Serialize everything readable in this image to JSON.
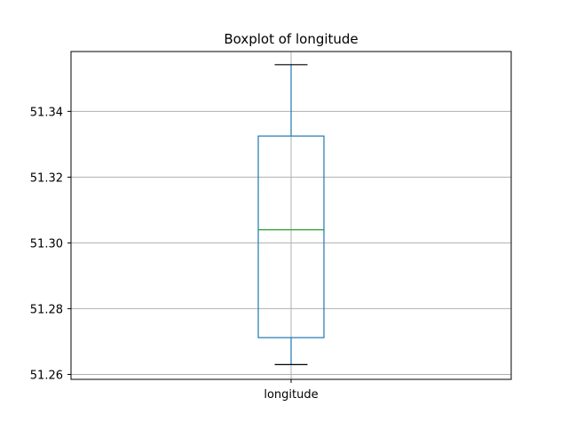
{
  "chart_data": {
    "type": "boxplot",
    "title": "Boxplot of longitude",
    "xlabel": "",
    "ylabel": "",
    "categories": [
      "longitude"
    ],
    "boxes": [
      {
        "category": "longitude",
        "whisker_low": 51.263,
        "q1": 51.2712,
        "median": 51.304,
        "q3": 51.3325,
        "whisker_high": 51.3542
      }
    ],
    "ylim": [
      51.2585,
      51.3582
    ],
    "yticks": [
      51.26,
      51.28,
      51.3,
      51.32,
      51.34
    ],
    "ytick_labels": [
      "51.26",
      "51.28",
      "51.30",
      "51.32",
      "51.34"
    ],
    "grid": true,
    "colors": {
      "box": "#1f77b4",
      "median": "#2ca02c",
      "whisker_cap": "#000000",
      "grid": "#b0b0b0"
    }
  }
}
